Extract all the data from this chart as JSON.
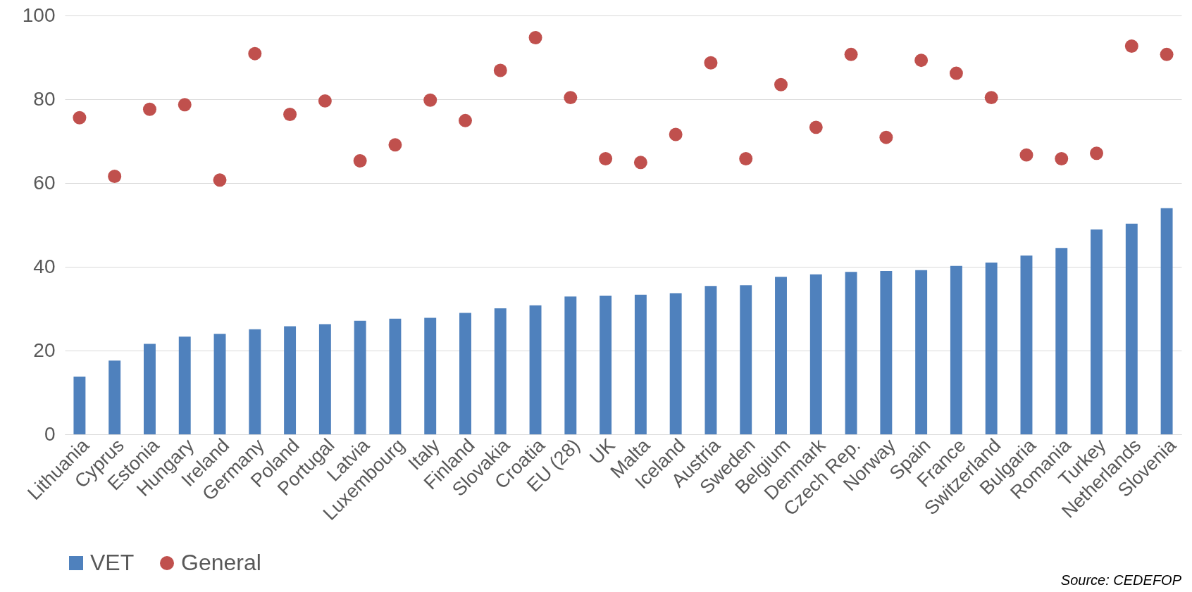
{
  "chart_data": {
    "type": "bar",
    "categories": [
      "Lithuania",
      "Cyprus",
      "Estonia",
      "Hungary",
      "Ireland",
      "Germany",
      "Poland",
      "Portugal",
      "Latvia",
      "Luxembourg",
      "Italy",
      "Finland",
      "Slovakia",
      "Croatia",
      "EU (28)",
      "UK",
      "Malta",
      "Iceland",
      "Austria",
      "Sweden",
      "Belgium",
      "Denmark",
      "Czech Rep.",
      "Norway",
      "Spain",
      "France",
      "Switzerland",
      "Bulgaria",
      "Romania",
      "Turkey",
      "Netherlands",
      "Slovenia"
    ],
    "series": [
      {
        "name": "VET",
        "color": "#4f81bd",
        "values": [
          13.8,
          17.6,
          21.6,
          23.3,
          24.0,
          25.1,
          25.8,
          26.3,
          27.1,
          27.6,
          27.8,
          29.0,
          30.1,
          30.8,
          32.9,
          33.1,
          33.3,
          33.7,
          35.4,
          35.6,
          37.6,
          38.2,
          38.8,
          39.0,
          39.2,
          40.2,
          41.0,
          42.7,
          44.5,
          48.9,
          50.3,
          54.0
        ]
      },
      {
        "name": "General",
        "type": "scatter",
        "color": "#c0504d",
        "values": [
          75.6,
          61.6,
          77.6,
          78.7,
          60.7,
          90.9,
          76.4,
          79.6,
          65.3,
          69.1,
          79.8,
          74.9,
          86.9,
          94.7,
          80.4,
          65.8,
          64.9,
          71.6,
          88.7,
          65.8,
          83.5,
          73.3,
          90.7,
          70.9,
          89.3,
          86.2,
          80.4,
          66.7,
          65.8,
          67.1,
          92.7,
          90.7
        ]
      }
    ],
    "ylim": [
      0,
      100
    ],
    "yticks": [
      0,
      20,
      40,
      60,
      80,
      100
    ],
    "grid": "y",
    "legend": "bottom",
    "marker": "circle",
    "annotations": [
      "Source: CEDEFOP"
    ]
  }
}
